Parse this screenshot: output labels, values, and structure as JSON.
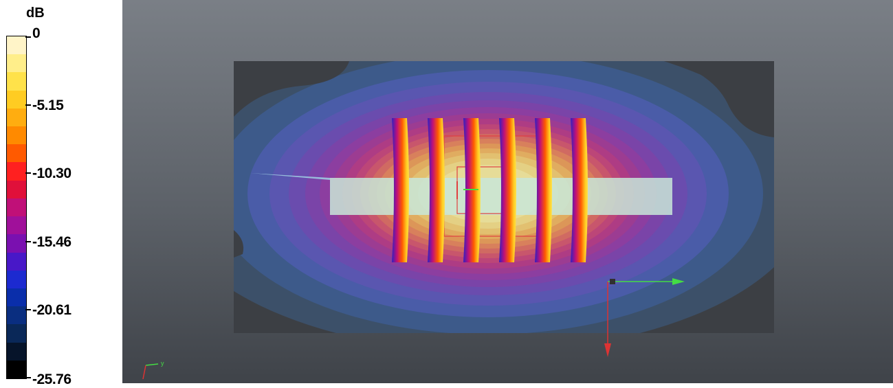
{
  "legend": {
    "unit": "dB",
    "ticks": [
      {
        "label": "0",
        "fraction": 0.0
      },
      {
        "label": "-5.15",
        "fraction": 0.2
      },
      {
        "label": "-10.30",
        "fraction": 0.4
      },
      {
        "label": "-15.46",
        "fraction": 0.6
      },
      {
        "label": "-20.61",
        "fraction": 0.8
      },
      {
        "label": "-25.76",
        "fraction": 1.0
      }
    ],
    "colors": [
      "#fff4c8",
      "#ffee8a",
      "#ffe24a",
      "#ffcc22",
      "#ffad10",
      "#ff8a00",
      "#ff5a00",
      "#ff2020",
      "#e0103a",
      "#c01078",
      "#a0109a",
      "#7a10b0",
      "#4818c8",
      "#1c2ad0",
      "#0a2eaa",
      "#0a2e80",
      "#0a2858",
      "#06142a",
      "#000000"
    ]
  },
  "scene": {
    "plane_color": "#3c5069",
    "beam_color": "#c8e6d8",
    "axis_x_color": "#44dd44",
    "axis_z_color": "#dd3333",
    "axis_y_color": "#44dd44",
    "triad_labels": {
      "y": "y"
    }
  }
}
